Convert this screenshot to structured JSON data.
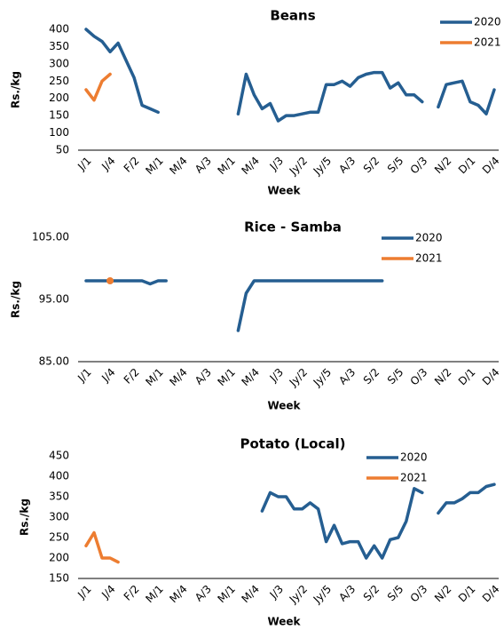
{
  "chart_data": [
    {
      "type": "line",
      "title": "Beans",
      "x_label": "Week",
      "y_label": "Rs./kg",
      "categories": [
        "J/1",
        null,
        null,
        "J/4",
        null,
        null,
        "F/2",
        null,
        null,
        "M/1",
        null,
        null,
        "M/4",
        null,
        null,
        "A/3",
        null,
        null,
        "M/1",
        null,
        null,
        "M/4",
        null,
        null,
        "J/3",
        null,
        null,
        "Jy/2",
        null,
        null,
        "Jy/5",
        null,
        null,
        "A/3",
        null,
        null,
        "S/2",
        null,
        null,
        "S/5",
        null,
        null,
        "O/3",
        null,
        null,
        "N/2",
        null,
        null,
        "D/1",
        null,
        null,
        "D/4"
      ],
      "series": [
        {
          "name": "2020",
          "color": "#255e91",
          "values": [
            400,
            380,
            365,
            335,
            360,
            310,
            260,
            180,
            170,
            160,
            null,
            null,
            null,
            null,
            null,
            null,
            null,
            null,
            null,
            155,
            270,
            210,
            170,
            185,
            135,
            150,
            150,
            155,
            160,
            160,
            240,
            240,
            250,
            235,
            260,
            270,
            275,
            275,
            230,
            245,
            210,
            210,
            190,
            null,
            175,
            240,
            245,
            250,
            190,
            180,
            155,
            225
          ]
        },
        {
          "name": "2021",
          "color": "#ed7d31",
          "values": [
            225,
            195,
            250,
            270,
            null,
            null,
            null,
            null,
            null,
            null,
            null,
            null,
            null,
            null,
            null,
            null,
            null,
            null,
            null,
            null,
            null,
            null,
            null,
            null,
            null,
            null,
            null,
            null,
            null,
            null,
            null,
            null,
            null,
            null,
            null,
            null,
            null,
            null,
            null,
            null,
            null,
            null,
            null,
            null,
            null,
            null,
            null,
            null,
            null,
            null,
            null,
            null
          ]
        }
      ],
      "ylim": [
        50,
        400
      ],
      "yticks": [
        50,
        100,
        150,
        200,
        250,
        300,
        350,
        400
      ]
    },
    {
      "type": "line",
      "title": "Rice - Samba",
      "x_label": "Week",
      "y_label": "Rs./kg",
      "categories": [
        "J/1",
        null,
        null,
        "J/4",
        null,
        null,
        "F/2",
        null,
        null,
        "M/1",
        null,
        null,
        "M/4",
        null,
        null,
        "A/3",
        null,
        null,
        "M/1",
        null,
        null,
        "M/4",
        null,
        null,
        "J/3",
        null,
        null,
        "Jy/2",
        null,
        null,
        "Jy/5",
        null,
        null,
        "A/3",
        null,
        null,
        "S/2",
        null,
        null,
        "S/5",
        null,
        null,
        "O/3",
        null,
        null,
        "N/2",
        null,
        null,
        "D/1",
        null,
        null,
        "D/4"
      ],
      "series": [
        {
          "name": "2020",
          "color": "#255e91",
          "values": [
            98,
            98,
            98,
            98,
            98,
            98,
            98,
            98,
            97.5,
            98,
            98,
            null,
            null,
            null,
            null,
            null,
            null,
            null,
            null,
            90,
            96,
            98,
            98,
            98,
            98,
            98,
            98,
            98,
            98,
            98,
            98,
            98,
            98,
            98,
            98,
            98,
            98,
            98,
            null,
            null,
            null,
            null,
            null,
            null,
            null,
            null,
            null,
            null,
            null,
            null,
            null,
            null
          ]
        },
        {
          "name": "2021",
          "color": "#ed7d31",
          "values": [
            null,
            null,
            null,
            98,
            null,
            null,
            null,
            null,
            null,
            null,
            null,
            null,
            null,
            null,
            null,
            null,
            null,
            null,
            null,
            null,
            null,
            null,
            null,
            null,
            null,
            null,
            null,
            null,
            null,
            null,
            null,
            null,
            null,
            null,
            null,
            null,
            null,
            null,
            null,
            null,
            null,
            null,
            null,
            null,
            null,
            null,
            null,
            null,
            null,
            null,
            null,
            null
          ]
        }
      ],
      "ylim": [
        85,
        105
      ],
      "yticks": [
        {
          "value": 85,
          "label": "85.00"
        },
        {
          "value": 95,
          "label": "95.00"
        },
        {
          "value": 105,
          "label": "105.00"
        }
      ]
    },
    {
      "type": "line",
      "title": "Potato (Local)",
      "x_label": "Week",
      "y_label": "Rs./kg",
      "categories": [
        "J/1",
        null,
        null,
        "J/4",
        null,
        null,
        "F/2",
        null,
        null,
        "M/1",
        null,
        null,
        "M/4",
        null,
        null,
        "A/3",
        null,
        null,
        "M/1",
        null,
        null,
        "M/4",
        null,
        null,
        "J/3",
        null,
        null,
        "Jy/2",
        null,
        null,
        "Jy/5",
        null,
        null,
        "A/3",
        null,
        null,
        "S/2",
        null,
        null,
        "S/5",
        null,
        null,
        "O/3",
        null,
        null,
        "N/2",
        null,
        null,
        "D/1",
        null,
        null,
        "D/4"
      ],
      "series": [
        {
          "name": "2020",
          "color": "#255e91",
          "values": [
            null,
            null,
            null,
            null,
            null,
            null,
            null,
            null,
            null,
            null,
            null,
            null,
            null,
            null,
            null,
            null,
            null,
            null,
            null,
            null,
            null,
            null,
            315,
            360,
            350,
            350,
            320,
            320,
            335,
            320,
            240,
            280,
            235,
            240,
            240,
            200,
            230,
            200,
            245,
            250,
            290,
            370,
            360,
            null,
            310,
            335,
            335,
            345,
            360,
            360,
            375,
            380
          ]
        },
        {
          "name": "2021",
          "color": "#ed7d31",
          "values": [
            230,
            262,
            200,
            200,
            190,
            null,
            null,
            null,
            null,
            null,
            null,
            null,
            null,
            null,
            null,
            null,
            null,
            null,
            null,
            null,
            null,
            null,
            null,
            null,
            null,
            null,
            null,
            null,
            null,
            null,
            null,
            null,
            null,
            null,
            null,
            null,
            null,
            null,
            null,
            null,
            null,
            null,
            null,
            null,
            null,
            null,
            null,
            null,
            null,
            null,
            null,
            null
          ]
        }
      ],
      "ylim": [
        150,
        450
      ],
      "yticks": [
        150,
        200,
        250,
        300,
        350,
        400,
        450
      ]
    }
  ]
}
